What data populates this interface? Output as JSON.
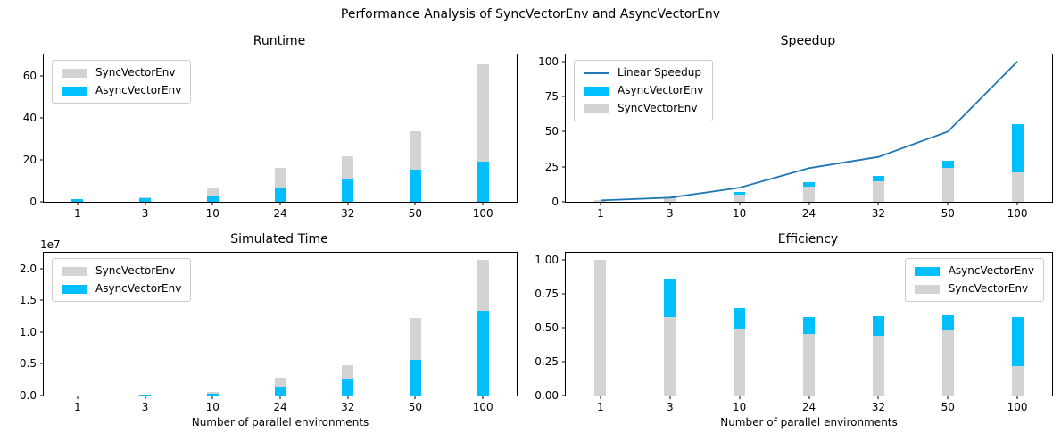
{
  "suptitle": "Performance Analysis of SyncVectorEnv and AsyncVectorEnv",
  "colors": {
    "sync_bar": "#d3d3d3",
    "async_bar": "#00bfff",
    "linear_speedup_line": "#1f77b4",
    "axes_edge": "#000000",
    "text": "#000000",
    "legend_border": "#cccccc"
  },
  "chart_data": [
    {
      "id": "runtime",
      "type": "bar",
      "title": "Runtime",
      "categories": [
        "1",
        "3",
        "10",
        "24",
        "32",
        "50",
        "100"
      ],
      "ylim": [
        0,
        70
      ],
      "yticks": [
        0,
        20,
        40,
        60
      ],
      "ytick_labels": [
        "0",
        "20",
        "40",
        "60"
      ],
      "grid": false,
      "bar_mode": "overlay",
      "series": [
        {
          "name": "SyncVectorEnv",
          "type": "bar",
          "color": "#d3d3d3",
          "values": [
            0.9,
            2.3,
            6.5,
            16.0,
            21.5,
            33.5,
            65.5
          ]
        },
        {
          "name": "AsyncVectorEnv",
          "type": "bar",
          "color": "#00bfff",
          "values": [
            1.1,
            1.5,
            2.8,
            7.0,
            10.6,
            15.2,
            19.3
          ]
        }
      ],
      "legend": {
        "position": "upper-left",
        "entries": [
          "SyncVectorEnv",
          "AsyncVectorEnv"
        ]
      }
    },
    {
      "id": "speedup",
      "type": "bar",
      "title": "Speedup",
      "categories": [
        "1",
        "3",
        "10",
        "24",
        "32",
        "50",
        "100"
      ],
      "ylim": [
        0,
        105
      ],
      "yticks": [
        0,
        25,
        50,
        75,
        100
      ],
      "ytick_labels": [
        "0",
        "25",
        "50",
        "75",
        "100"
      ],
      "grid": false,
      "bar_mode": "overlay",
      "series": [
        {
          "name": "AsyncVectorEnv",
          "type": "bar",
          "color": "#00bfff",
          "values": [
            0.9,
            3.3,
            6.8,
            13.8,
            18.3,
            29.0,
            55.5
          ]
        },
        {
          "name": "SyncVectorEnv",
          "type": "bar",
          "color": "#d3d3d3",
          "values": [
            1.0,
            2.8,
            5.0,
            11.0,
            14.5,
            24.0,
            21.0
          ]
        },
        {
          "name": "Linear Speedup",
          "type": "line",
          "color": "#1f77b4",
          "values": [
            1,
            3,
            10,
            24,
            32,
            50,
            100
          ]
        }
      ],
      "legend": {
        "position": "upper-left",
        "entries": [
          "Linear Speedup",
          "AsyncVectorEnv",
          "SyncVectorEnv"
        ]
      }
    },
    {
      "id": "simtime",
      "type": "bar",
      "title": "Simulated Time",
      "categories": [
        "1",
        "3",
        "10",
        "24",
        "32",
        "50",
        "100"
      ],
      "xlabel": "Number of parallel environments",
      "ylim": [
        0,
        22500000
      ],
      "yticks": [
        0,
        5000000,
        10000000,
        15000000,
        20000000
      ],
      "ytick_labels": [
        "0.0",
        "0.5",
        "1.0",
        "1.5",
        "2.0"
      ],
      "y_offset_label": "1e7",
      "grid": false,
      "bar_mode": "overlay",
      "series": [
        {
          "name": "SyncVectorEnv",
          "type": "bar",
          "color": "#d3d3d3",
          "values": [
            30000,
            120000,
            550000,
            2800000,
            4750000,
            12200000,
            21400000
          ]
        },
        {
          "name": "AsyncVectorEnv",
          "type": "bar",
          "color": "#00bfff",
          "values": [
            40000,
            190000,
            330000,
            1450000,
            2650000,
            5600000,
            13300000
          ]
        }
      ],
      "legend": {
        "position": "upper-left",
        "entries": [
          "SyncVectorEnv",
          "AsyncVectorEnv"
        ]
      }
    },
    {
      "id": "efficiency",
      "type": "bar",
      "title": "Efficiency",
      "categories": [
        "1",
        "3",
        "10",
        "24",
        "32",
        "50",
        "100"
      ],
      "xlabel": "Number of parallel environments",
      "ylim": [
        0,
        1.05
      ],
      "yticks": [
        0,
        0.25,
        0.5,
        0.75,
        1.0
      ],
      "ytick_labels": [
        "0.00",
        "0.25",
        "0.50",
        "0.75",
        "1.00"
      ],
      "grid": false,
      "bar_mode": "overlay",
      "series": [
        {
          "name": "AsyncVectorEnv",
          "type": "bar",
          "color": "#00bfff",
          "values": [
            0.85,
            0.86,
            0.64,
            0.58,
            0.585,
            0.59,
            0.575
          ]
        },
        {
          "name": "SyncVectorEnv",
          "type": "bar",
          "color": "#d3d3d3",
          "values": [
            1.0,
            0.58,
            0.49,
            0.455,
            0.44,
            0.48,
            0.215
          ]
        }
      ],
      "legend": {
        "position": "upper-right",
        "entries": [
          "AsyncVectorEnv",
          "SyncVectorEnv"
        ]
      }
    }
  ]
}
